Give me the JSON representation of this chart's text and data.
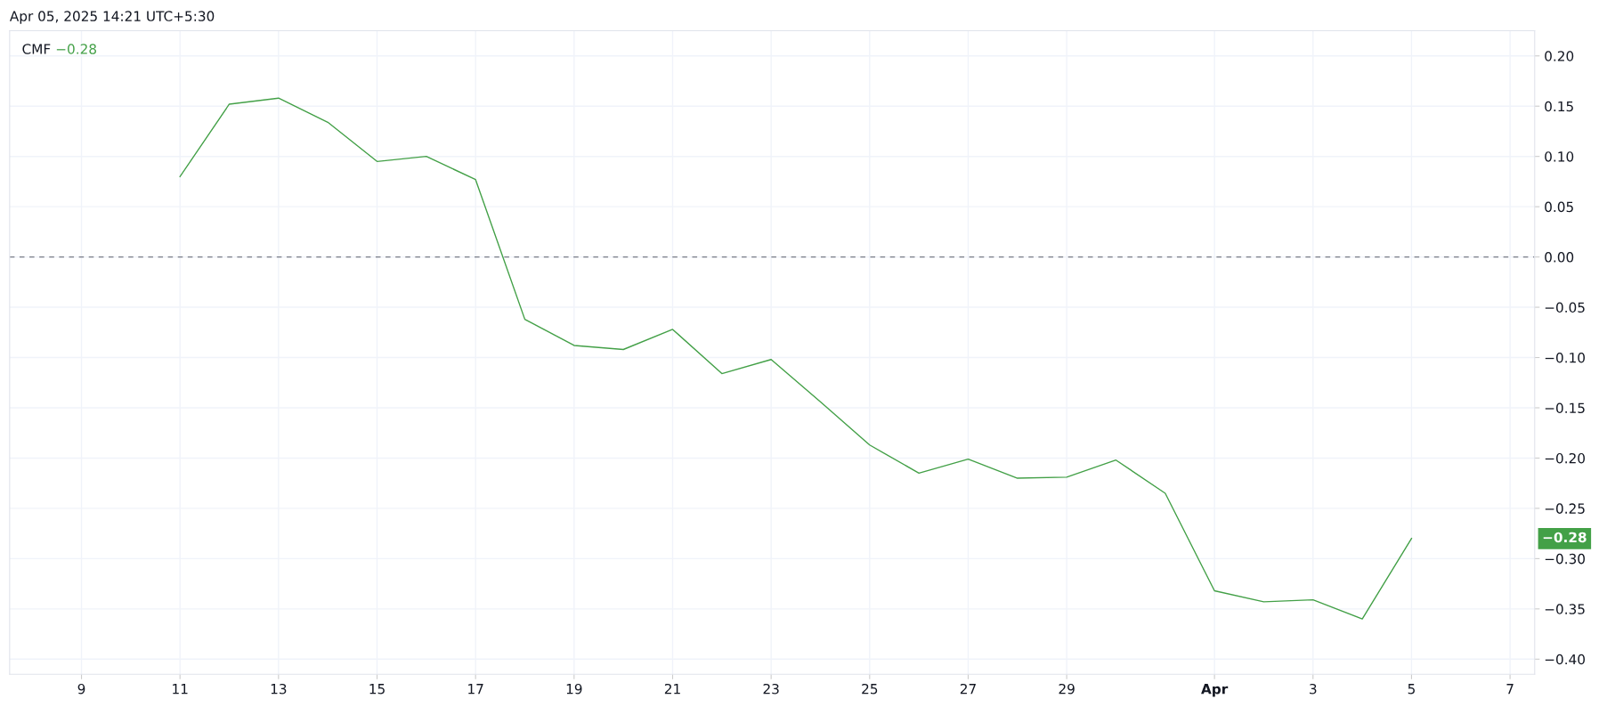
{
  "chart_data": {
    "type": "line",
    "title": "CMF",
    "x": [
      "2025-03-11",
      "2025-03-12",
      "2025-03-13",
      "2025-03-14",
      "2025-03-15",
      "2025-03-16",
      "2025-03-17",
      "2025-03-18",
      "2025-03-19",
      "2025-03-20",
      "2025-03-21",
      "2025-03-22",
      "2025-03-23",
      "2025-03-24",
      "2025-03-25",
      "2025-03-26",
      "2025-03-27",
      "2025-03-28",
      "2025-03-29",
      "2025-03-30",
      "2025-03-31",
      "2025-04-01",
      "2025-04-02",
      "2025-04-03",
      "2025-04-04",
      "2025-04-05"
    ],
    "series": [
      {
        "color": "#43a047",
        "values": [
          0.08,
          0.152,
          0.158,
          0.134,
          0.095,
          0.1,
          0.077,
          -0.062,
          -0.088,
          -0.092,
          -0.072,
          -0.116,
          -0.102,
          -0.144,
          -0.187,
          -0.215,
          -0.201,
          -0.22,
          -0.219,
          -0.202,
          -0.235,
          -0.332,
          -0.343,
          -0.341,
          -0.36,
          -0.28
        ]
      }
    ],
    "xlim": [
      "2025-03-07T13:00",
      "2025-04-07T12:00"
    ],
    "xticks": [
      {
        "value": "2025-03-09",
        "label": "9"
      },
      {
        "value": "2025-03-11",
        "label": "11"
      },
      {
        "value": "2025-03-13",
        "label": "13"
      },
      {
        "value": "2025-03-15",
        "label": "15"
      },
      {
        "value": "2025-03-17",
        "label": "17"
      },
      {
        "value": "2025-03-19",
        "label": "19"
      },
      {
        "value": "2025-03-21",
        "label": "21"
      },
      {
        "value": "2025-03-23",
        "label": "23"
      },
      {
        "value": "2025-03-25",
        "label": "25"
      },
      {
        "value": "2025-03-27",
        "label": "27"
      },
      {
        "value": "2025-03-29",
        "label": "29"
      },
      {
        "value": "2025-04-01",
        "label": "Apr"
      },
      {
        "value": "2025-04-03",
        "label": "3"
      },
      {
        "value": "2025-04-05",
        "label": "5"
      },
      {
        "value": "2025-04-07",
        "label": "7"
      }
    ],
    "ylim": [
      -0.415,
      0.225
    ],
    "yticks": [
      {
        "value": 0.2,
        "label": "0.20"
      },
      {
        "value": 0.15,
        "label": "0.15"
      },
      {
        "value": 0.1,
        "label": "0.10"
      },
      {
        "value": 0.05,
        "label": "0.05"
      },
      {
        "value": 0,
        "label": "0.00"
      },
      {
        "value": -0.05,
        "label": "−0.05"
      },
      {
        "value": -0.1,
        "label": "−0.10"
      },
      {
        "value": -0.15,
        "label": "−0.15"
      },
      {
        "value": -0.2,
        "label": "−0.20"
      },
      {
        "value": -0.25,
        "label": "−0.25"
      },
      {
        "value": -0.3,
        "label": "−0.30"
      },
      {
        "value": -0.35,
        "label": "−0.35"
      },
      {
        "value": -0.4,
        "label": "−0.40"
      }
    ],
    "ref_lines": [
      {
        "axis": "y",
        "value": 0,
        "color": "#787b86",
        "line_style": "dashed"
      }
    ],
    "grid": true,
    "annotations": [
      "Apr 05, 2025 14:21 UTC+5:30",
      "−0.28",
      "−0.28"
    ]
  }
}
